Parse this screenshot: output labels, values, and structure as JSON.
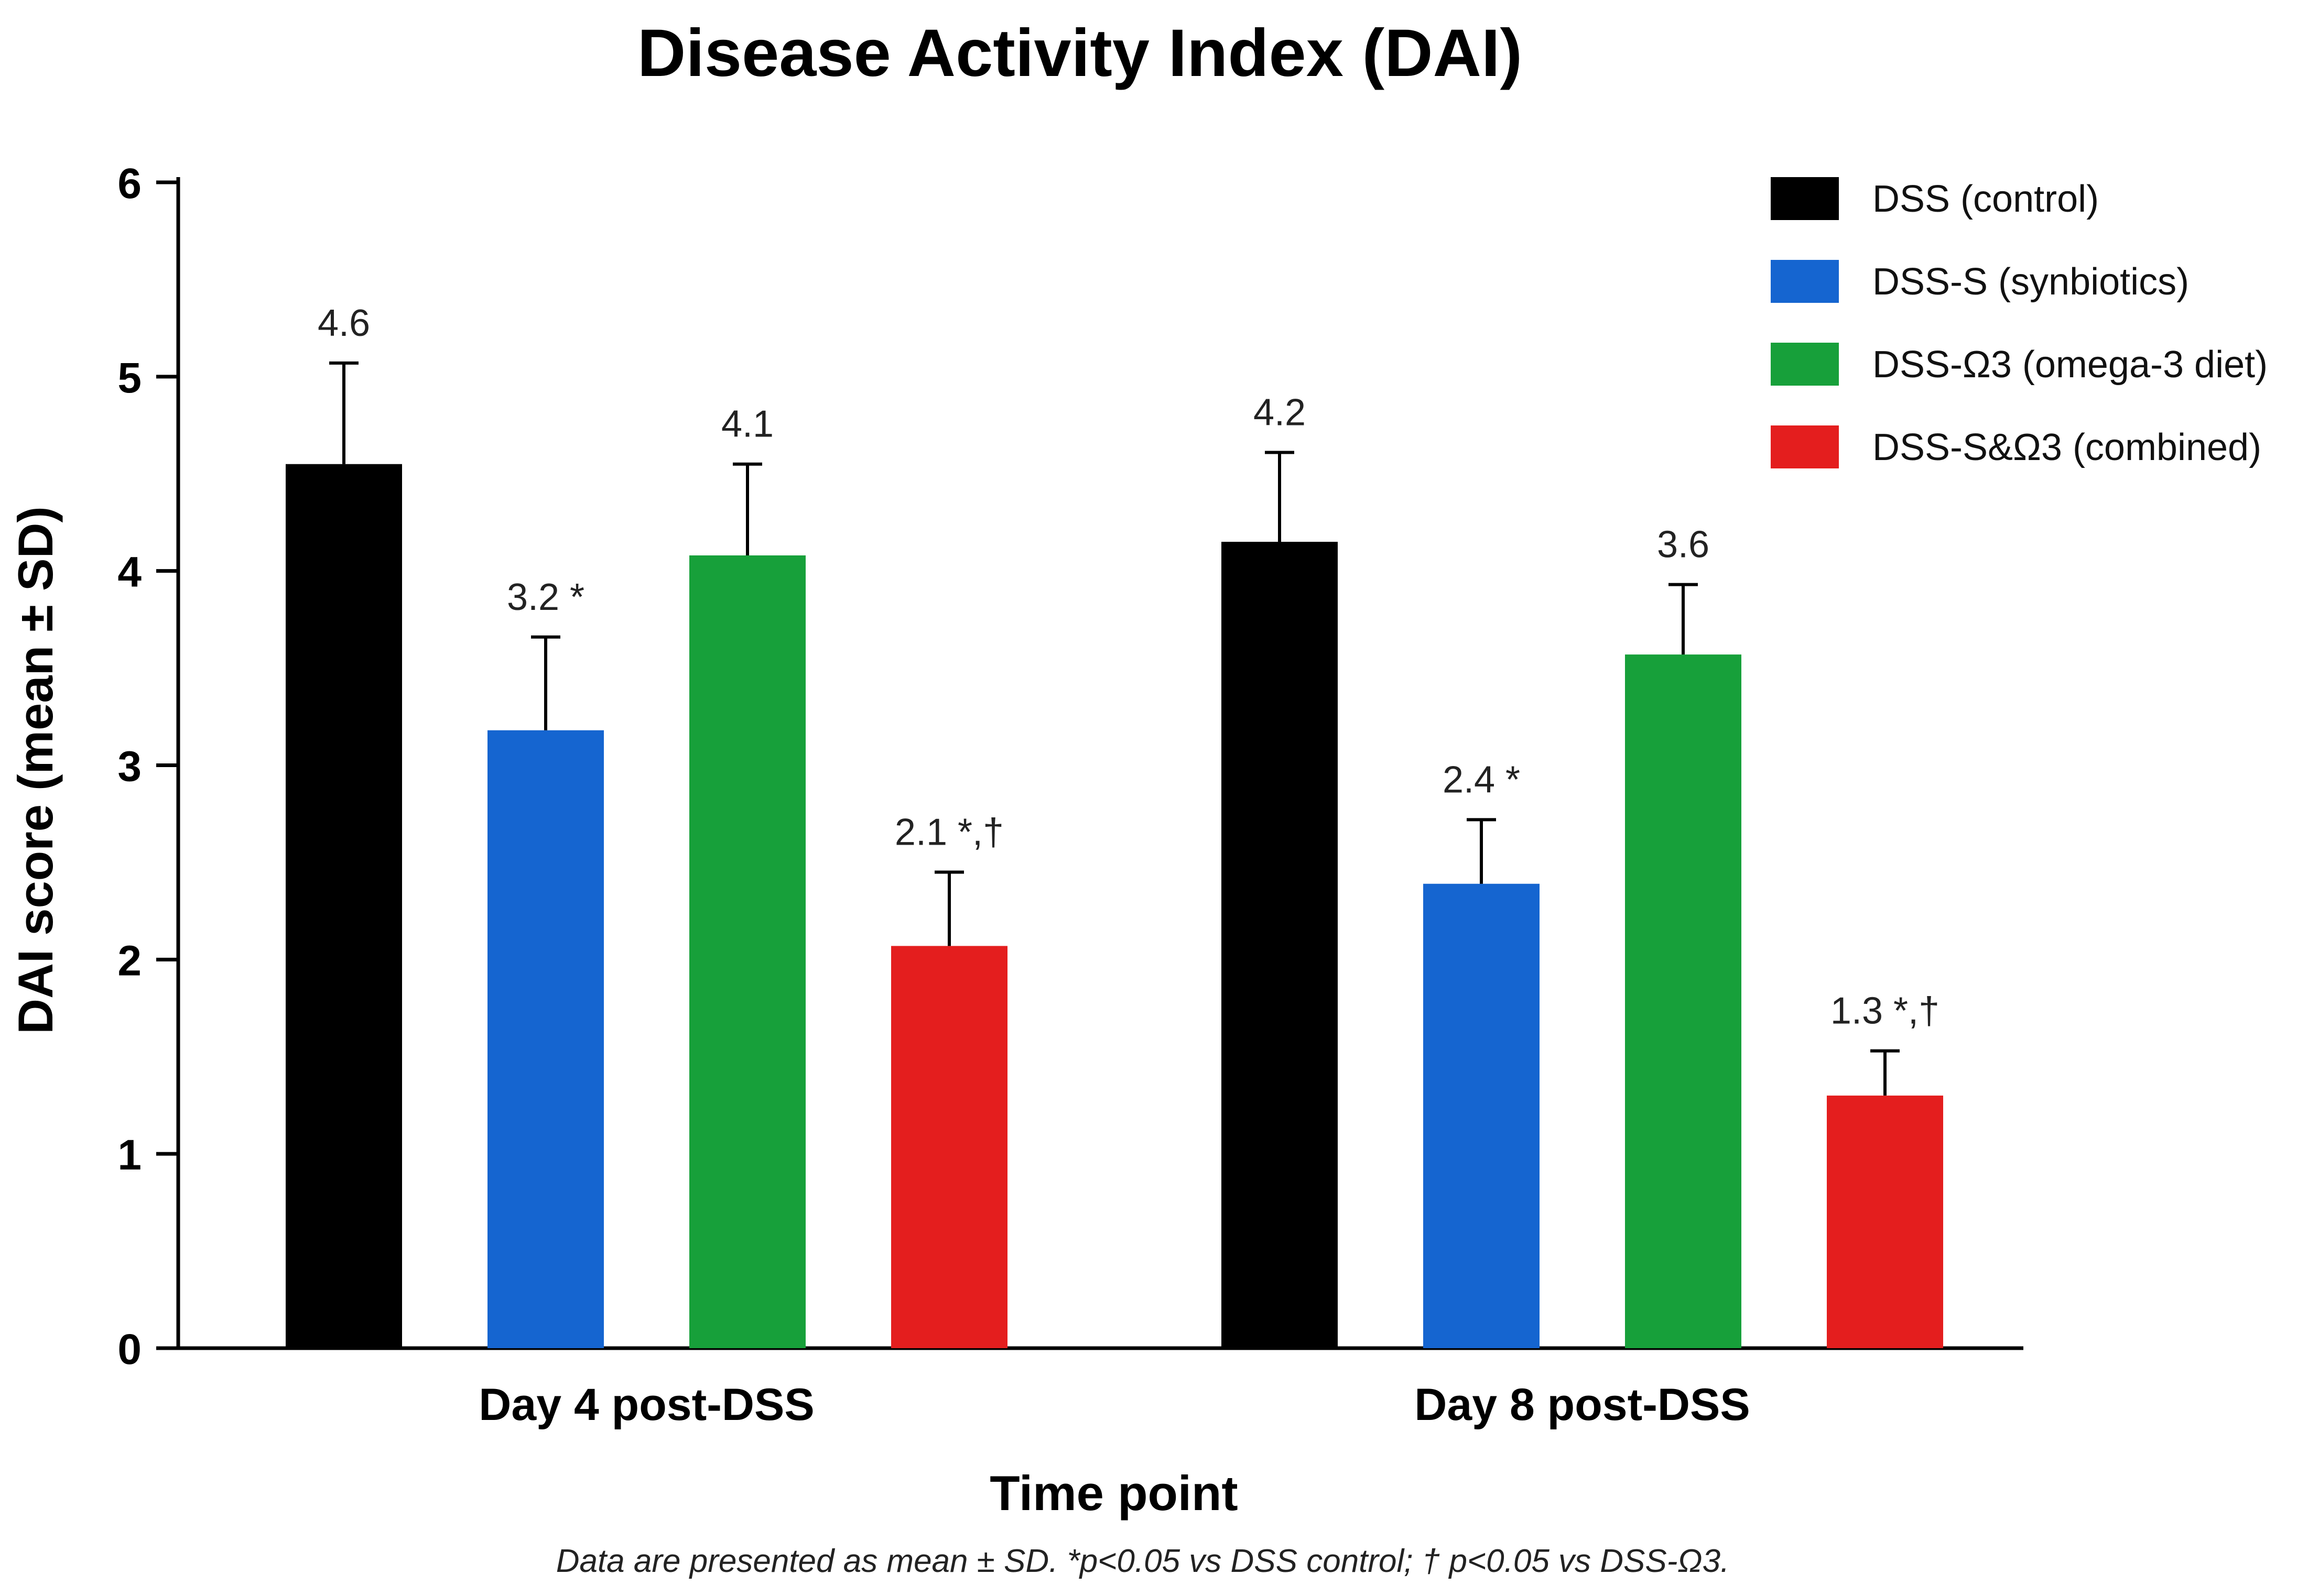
{
  "chart_data": {
    "type": "bar",
    "title": "Disease Activity Index (DAI)",
    "xlabel": "Time point",
    "ylabel": "DAI score (mean ± SD)",
    "ylim": [
      0,
      6
    ],
    "yticks": [
      0,
      1,
      2,
      3,
      4,
      5,
      6
    ],
    "grid": false,
    "legend_position": "top-right",
    "categories": [
      "Day 4 post-DSS",
      "Day 8 post-DSS"
    ],
    "series": [
      {
        "name": "DSS (control)",
        "color": "#000000",
        "values": [
          4.55,
          4.15
        ],
        "errors": [
          0.52,
          0.46
        ],
        "labels": [
          "4.6",
          "4.2"
        ]
      },
      {
        "name": "DSS-S (synbiotics)",
        "color": "#1565d0",
        "values": [
          3.18,
          2.39
        ],
        "errors": [
          0.48,
          0.33
        ],
        "labels": [
          "3.2 *",
          "2.4 *"
        ]
      },
      {
        "name": "DSS-Ω3 (omega-3 diet)",
        "color": "#17a03a",
        "values": [
          4.08,
          3.57
        ],
        "errors": [
          0.47,
          0.36
        ],
        "labels": [
          "4.1",
          "3.6"
        ]
      },
      {
        "name": "DSS-S&Ω3 (combined)",
        "color": "#e41e1e",
        "values": [
          2.07,
          1.3
        ],
        "errors": [
          0.38,
          0.23
        ],
        "labels": [
          "2.1 *,†",
          "1.3 *,†"
        ]
      }
    ],
    "footnote": "Data are presented as mean ± SD.  *p<0.05 vs DSS control;  † p<0.05 vs DSS-Ω3."
  }
}
